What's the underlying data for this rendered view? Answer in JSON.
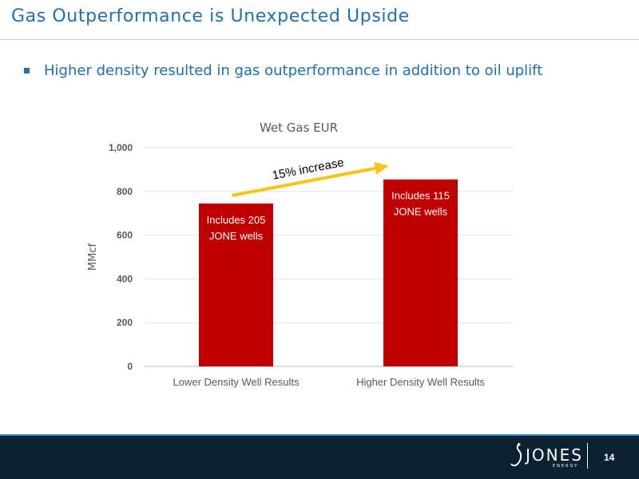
{
  "slide": {
    "title": "Gas Outperformance is Unexpected Upside",
    "bullet": "Higher density resulted in gas outperformance in addition to oil uplift"
  },
  "footer": {
    "logo_text": "JONES",
    "logo_subtext": "ENERGY",
    "page_number": "14"
  },
  "colors": {
    "accent": "#1f6fb5",
    "bar": "#c00000",
    "arrow": "#f5c518",
    "footer_bg": "#0c2232"
  },
  "chart_data": {
    "type": "bar",
    "title": "Wet Gas EUR",
    "xlabel": "",
    "ylabel": "MMcf",
    "categories": [
      "Lower Density Well Results",
      "Higher Density Well Results"
    ],
    "values": [
      745,
      855
    ],
    "ylim": [
      0,
      1000
    ],
    "yticks": [
      0,
      200,
      400,
      600,
      800,
      1000
    ],
    "ytick_labels": [
      "0",
      "200",
      "400",
      "600",
      "800",
      "1,000"
    ],
    "grid": true,
    "bar_labels": [
      [
        "Includes 205",
        "JONE wells"
      ],
      [
        "Includes 115",
        "JONE wells"
      ]
    ],
    "annotation": "15% increase"
  }
}
